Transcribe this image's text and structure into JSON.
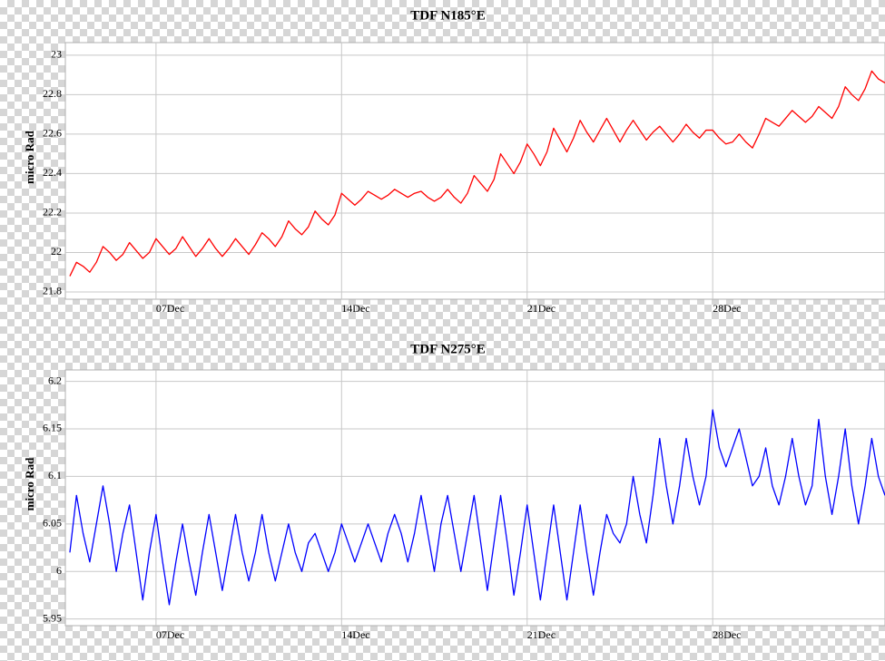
{
  "chart_data": [
    {
      "type": "line",
      "title": "TDF N185°E",
      "ylabel": "micro Rad",
      "x": [
        3.75,
        4,
        4.25,
        4.5,
        4.75,
        5,
        5.25,
        5.5,
        5.75,
        6,
        6.25,
        6.5,
        6.75,
        7,
        7.25,
        7.5,
        7.75,
        8,
        8.25,
        8.5,
        8.75,
        9,
        9.25,
        9.5,
        9.75,
        10,
        10.25,
        10.5,
        10.75,
        11,
        11.25,
        11.5,
        11.75,
        12,
        12.25,
        12.5,
        12.75,
        13,
        13.25,
        13.5,
        13.75,
        14,
        14.25,
        14.5,
        14.75,
        15,
        15.25,
        15.5,
        15.75,
        16,
        16.25,
        16.5,
        16.75,
        17,
        17.25,
        17.5,
        17.75,
        18,
        18.25,
        18.5,
        18.75,
        19,
        19.25,
        19.5,
        19.75,
        20,
        20.25,
        20.5,
        20.75,
        21,
        21.25,
        21.5,
        21.75,
        22,
        22.25,
        22.5,
        22.75,
        23,
        23.25,
        23.5,
        23.75,
        24,
        24.25,
        24.5,
        24.75,
        25,
        25.25,
        25.5,
        25.75,
        26,
        26.25,
        26.5,
        26.75,
        27,
        27.25,
        27.5,
        27.75,
        28,
        28.25,
        28.5,
        28.75,
        29,
        29.25,
        29.5,
        29.75,
        30,
        30.25,
        30.5,
        30.75,
        31,
        31.25,
        31.5,
        31.75,
        32,
        32.25,
        32.5,
        32.75,
        33,
        33.25,
        33.5,
        33.75,
        34,
        34.25,
        34.5
      ],
      "series": [
        {
          "name": "N185°E",
          "color": "#ff0000",
          "values": [
            21.88,
            21.95,
            21.93,
            21.9,
            21.95,
            22.03,
            22.0,
            21.96,
            21.99,
            22.05,
            22.01,
            21.97,
            22.0,
            22.07,
            22.03,
            21.99,
            22.02,
            22.08,
            22.03,
            21.98,
            22.02,
            22.07,
            22.02,
            21.98,
            22.02,
            22.07,
            22.03,
            21.99,
            22.04,
            22.1,
            22.07,
            22.03,
            22.08,
            22.16,
            22.12,
            22.09,
            22.13,
            22.21,
            22.17,
            22.14,
            22.19,
            22.3,
            22.27,
            22.24,
            22.27,
            22.31,
            22.29,
            22.27,
            22.29,
            22.32,
            22.3,
            22.28,
            22.3,
            22.31,
            22.28,
            22.26,
            22.28,
            22.32,
            22.28,
            22.25,
            22.3,
            22.39,
            22.35,
            22.31,
            22.37,
            22.5,
            22.45,
            22.4,
            22.46,
            22.55,
            22.5,
            22.44,
            22.51,
            22.63,
            22.57,
            22.51,
            22.58,
            22.67,
            22.61,
            22.56,
            22.62,
            22.68,
            22.62,
            22.56,
            22.62,
            22.67,
            22.62,
            22.57,
            22.61,
            22.64,
            22.6,
            22.56,
            22.6,
            22.65,
            22.61,
            22.58,
            22.62,
            22.62,
            22.58,
            22.55,
            22.56,
            22.6,
            22.56,
            22.53,
            22.6,
            22.68,
            22.66,
            22.64,
            22.68,
            22.72,
            22.69,
            22.66,
            22.69,
            22.74,
            22.71,
            22.68,
            22.74,
            22.84,
            22.8,
            22.77,
            22.83,
            22.92,
            22.88,
            22.86
          ]
        }
      ],
      "xlim": [
        3.58,
        34.5
      ],
      "xticks": [
        {
          "value": 7,
          "label": "07Dec"
        },
        {
          "value": 14,
          "label": "14Dec"
        },
        {
          "value": 21,
          "label": "21Dec"
        },
        {
          "value": 28,
          "label": "28Dec"
        }
      ],
      "ylim": [
        21.763,
        23.064
      ],
      "yticks": [
        21.8,
        22,
        22.2,
        22.4,
        22.6,
        22.8,
        23
      ],
      "grid": true
    },
    {
      "type": "line",
      "title": "TDF N275°E",
      "ylabel": "micro Rad",
      "x": [
        3.75,
        4,
        4.25,
        4.5,
        4.75,
        5,
        5.25,
        5.5,
        5.75,
        6,
        6.25,
        6.5,
        6.75,
        7,
        7.25,
        7.5,
        7.75,
        8,
        8.25,
        8.5,
        8.75,
        9,
        9.25,
        9.5,
        9.75,
        10,
        10.25,
        10.5,
        10.75,
        11,
        11.25,
        11.5,
        11.75,
        12,
        12.25,
        12.5,
        12.75,
        13,
        13.25,
        13.5,
        13.75,
        14,
        14.25,
        14.5,
        14.75,
        15,
        15.25,
        15.5,
        15.75,
        16,
        16.25,
        16.5,
        16.75,
        17,
        17.25,
        17.5,
        17.75,
        18,
        18.25,
        18.5,
        18.75,
        19,
        19.25,
        19.5,
        19.75,
        20,
        20.25,
        20.5,
        20.75,
        21,
        21.25,
        21.5,
        21.75,
        22,
        22.25,
        22.5,
        22.75,
        23,
        23.25,
        23.5,
        23.75,
        24,
        24.25,
        24.5,
        24.75,
        25,
        25.25,
        25.5,
        25.75,
        26,
        26.25,
        26.5,
        26.75,
        27,
        27.25,
        27.5,
        27.75,
        28,
        28.25,
        28.5,
        28.75,
        29,
        29.25,
        29.5,
        29.75,
        30,
        30.25,
        30.5,
        30.75,
        31,
        31.25,
        31.5,
        31.75,
        32,
        32.25,
        32.5,
        32.75,
        33,
        33.25,
        33.5,
        33.75,
        34,
        34.25,
        34.5
      ],
      "series": [
        {
          "name": "N275°E",
          "color": "#0000ff",
          "values": [
            6.02,
            6.08,
            6.04,
            6.01,
            6.05,
            6.09,
            6.05,
            6.0,
            6.04,
            6.07,
            6.02,
            5.97,
            6.02,
            6.06,
            6.01,
            5.965,
            6.01,
            6.05,
            6.01,
            5.975,
            6.02,
            6.06,
            6.02,
            5.98,
            6.02,
            6.06,
            6.02,
            5.99,
            6.02,
            6.06,
            6.02,
            5.99,
            6.02,
            6.05,
            6.02,
            6.0,
            6.03,
            6.04,
            6.02,
            6.0,
            6.02,
            6.05,
            6.03,
            6.01,
            6.03,
            6.05,
            6.03,
            6.01,
            6.04,
            6.06,
            6.04,
            6.01,
            6.04,
            6.08,
            6.04,
            6.0,
            6.05,
            6.08,
            6.04,
            6.0,
            6.04,
            6.08,
            6.03,
            5.98,
            6.03,
            6.08,
            6.03,
            5.975,
            6.02,
            6.07,
            6.02,
            5.97,
            6.02,
            6.07,
            6.02,
            5.97,
            6.02,
            6.07,
            6.02,
            5.975,
            6.02,
            6.06,
            6.04,
            6.03,
            6.05,
            6.1,
            6.06,
            6.03,
            6.08,
            6.14,
            6.09,
            6.05,
            6.09,
            6.14,
            6.1,
            6.07,
            6.1,
            6.17,
            6.13,
            6.11,
            6.13,
            6.15,
            6.12,
            6.09,
            6.1,
            6.13,
            6.09,
            6.07,
            6.1,
            6.14,
            6.1,
            6.07,
            6.09,
            6.16,
            6.1,
            6.06,
            6.1,
            6.15,
            6.09,
            6.05,
            6.09,
            6.14,
            6.1,
            6.08
          ]
        }
      ],
      "xlim": [
        3.58,
        34.5
      ],
      "xticks": [
        {
          "value": 7,
          "label": "07Dec"
        },
        {
          "value": 14,
          "label": "14Dec"
        },
        {
          "value": 21,
          "label": "21Dec"
        },
        {
          "value": 28,
          "label": "28Dec"
        }
      ],
      "ylim": [
        5.943,
        6.212
      ],
      "yticks": [
        5.95,
        6,
        6.05,
        6.1,
        6.15,
        6.2
      ],
      "grid": true
    }
  ]
}
